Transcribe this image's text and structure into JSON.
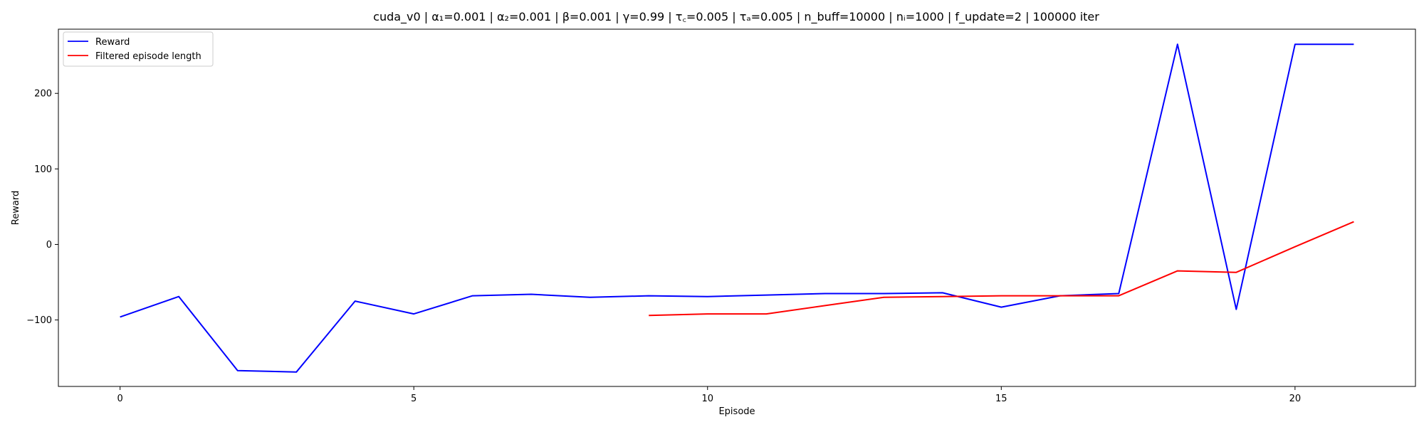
{
  "chart_data": {
    "type": "line",
    "title": "cuda_v0 | α₁=0.001 | α₂=0.001 | β=0.001 | γ=0.99 | τ꜀=0.005 | τₐ=0.005 | n_buff=10000 | nᵢ=1000 | f_update=2 | 100000 iter",
    "xlabel": "Episode",
    "ylabel": "Reward",
    "xlim": [
      -1.05,
      22.05
    ],
    "ylim": [
      -188,
      285
    ],
    "xticks": [
      0,
      5,
      10,
      15,
      20
    ],
    "yticks": [
      -100,
      0,
      100,
      200
    ],
    "legend_position": "top-left",
    "grid": false,
    "series": [
      {
        "name": "Reward",
        "color": "#0000ff",
        "x": [
          0,
          1,
          2,
          3,
          4,
          5,
          6,
          7,
          8,
          9,
          10,
          11,
          12,
          13,
          14,
          15,
          16,
          17,
          18,
          19,
          20,
          21
        ],
        "y": [
          -96,
          -69,
          -167,
          -169,
          -75,
          -92,
          -68,
          -66,
          -70,
          -68,
          -69,
          -67,
          -65,
          -65,
          -64,
          -83,
          -68,
          -65,
          265,
          -86,
          265,
          265
        ]
      },
      {
        "name": "Filtered episode length",
        "color": "#ff0000",
        "x": [
          9,
          10,
          11,
          12,
          13,
          14,
          15,
          16,
          17,
          18,
          19,
          20,
          21
        ],
        "y": [
          -94,
          -92,
          -92,
          -81,
          -70,
          -69,
          -68,
          -68,
          -68,
          -35,
          -37,
          -3,
          30
        ]
      }
    ]
  }
}
